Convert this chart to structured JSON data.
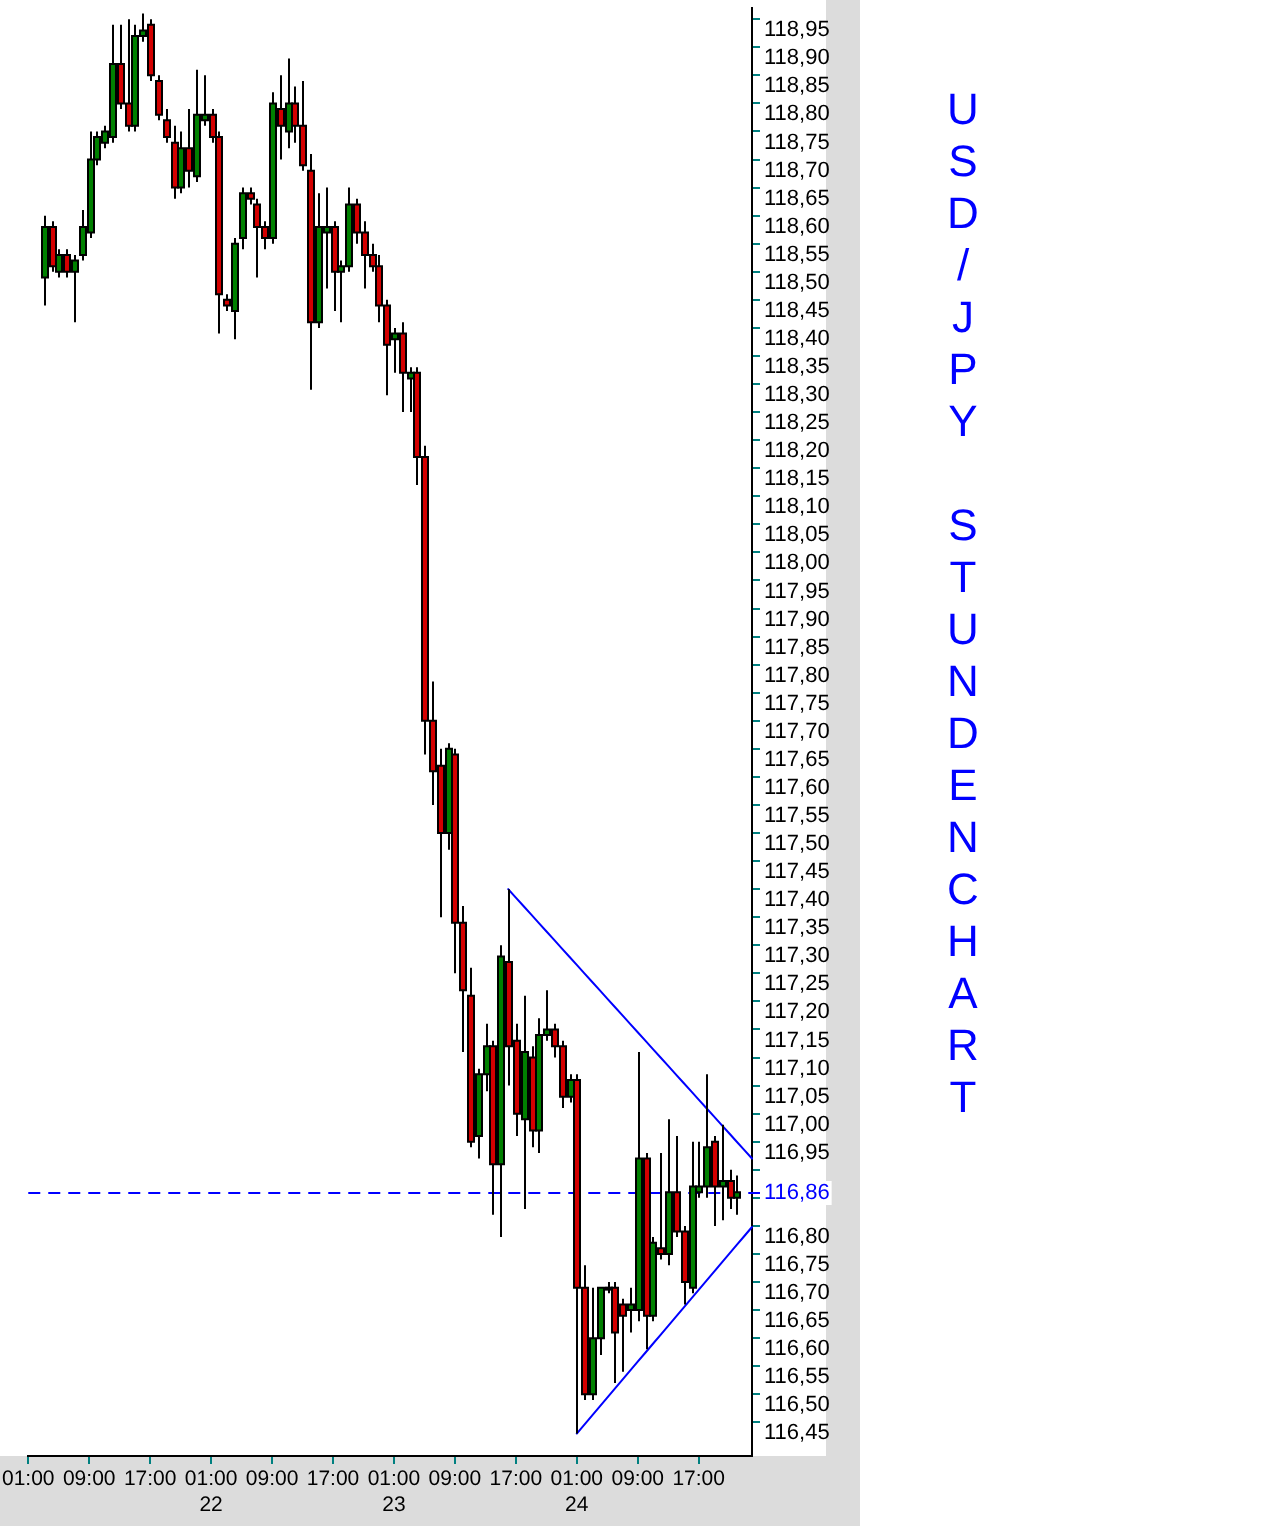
{
  "chart_data": {
    "type": "candlestick",
    "title": "USD/JPY STUNDENCHART",
    "categories": [
      "01:00",
      null,
      null,
      null,
      null,
      null,
      null,
      null,
      "09:00",
      null,
      null,
      null,
      null,
      null,
      null,
      null,
      "17:00",
      null,
      null,
      null,
      null,
      null,
      null,
      null,
      "01:00\n22",
      null,
      null,
      null,
      null,
      null,
      null,
      null,
      "09:00",
      null,
      null,
      null,
      null,
      null,
      null,
      null,
      "17:00",
      null,
      null,
      null,
      null,
      null,
      null,
      null,
      "01:00\n23",
      null,
      null,
      null,
      null,
      null,
      null,
      null,
      "09:00",
      null,
      null,
      null,
      null,
      null,
      null,
      null,
      "17:00",
      null,
      null,
      null,
      null,
      null,
      null,
      null,
      "01:00\n24",
      null,
      null,
      null,
      null,
      null,
      null,
      null,
      "09:00",
      null,
      null,
      null,
      null,
      null,
      null,
      null,
      "17:00",
      null,
      null,
      null,
      null,
      null,
      null,
      null
    ],
    "ylim": [
      116.39,
      118.97
    ],
    "yticks": [
      {
        "value": 116.45,
        "label": "116,45"
      },
      {
        "value": 116.5,
        "label": "116,50"
      },
      {
        "value": 116.55,
        "label": "116,55"
      },
      {
        "value": 116.6,
        "label": "116,60"
      },
      {
        "value": 116.65,
        "label": "116,65"
      },
      {
        "value": 116.7,
        "label": "116,70"
      },
      {
        "value": 116.75,
        "label": "116,75"
      },
      {
        "value": 116.8,
        "label": "116,80"
      },
      {
        "value": 116.85,
        "label": null
      },
      {
        "value": 116.9,
        "label": null
      },
      {
        "value": 116.95,
        "label": "116,95"
      },
      {
        "value": 117,
        "label": "117,00"
      },
      {
        "value": 117.05,
        "label": "117,05"
      },
      {
        "value": 117.1,
        "label": "117,10"
      },
      {
        "value": 117.15,
        "label": "117,15"
      },
      {
        "value": 117.2,
        "label": "117,20"
      },
      {
        "value": 117.25,
        "label": "117,25"
      },
      {
        "value": 117.3,
        "label": "117,30"
      },
      {
        "value": 117.35,
        "label": "117,35"
      },
      {
        "value": 117.4,
        "label": "117,40"
      },
      {
        "value": 117.45,
        "label": "117,45"
      },
      {
        "value": 117.5,
        "label": "117,50"
      },
      {
        "value": 117.55,
        "label": "117,55"
      },
      {
        "value": 117.6,
        "label": "117,60"
      },
      {
        "value": 117.65,
        "label": "117,65"
      },
      {
        "value": 117.7,
        "label": "117,70"
      },
      {
        "value": 117.75,
        "label": "117,75"
      },
      {
        "value": 117.8,
        "label": "117,80"
      },
      {
        "value": 117.85,
        "label": "117,85"
      },
      {
        "value": 117.9,
        "label": "117,90"
      },
      {
        "value": 117.95,
        "label": "117,95"
      },
      {
        "value": 118,
        "label": "118,00"
      },
      {
        "value": 118.05,
        "label": "118,05"
      },
      {
        "value": 118.1,
        "label": "118,10"
      },
      {
        "value": 118.15,
        "label": "118,15"
      },
      {
        "value": 118.2,
        "label": "118,20"
      },
      {
        "value": 118.25,
        "label": "118,25"
      },
      {
        "value": 118.3,
        "label": "118,30"
      },
      {
        "value": 118.35,
        "label": "118,35"
      },
      {
        "value": 118.4,
        "label": "118,40"
      },
      {
        "value": 118.45,
        "label": "118,45"
      },
      {
        "value": 118.5,
        "label": "118,50"
      },
      {
        "value": 118.55,
        "label": "118,55"
      },
      {
        "value": 118.6,
        "label": "118,60"
      },
      {
        "value": 118.65,
        "label": "118,65"
      },
      {
        "value": 118.7,
        "label": "118,70"
      },
      {
        "value": 118.75,
        "label": "118,75"
      },
      {
        "value": 118.8,
        "label": "118,80"
      },
      {
        "value": 118.85,
        "label": "118,85"
      },
      {
        "value": 118.9,
        "label": "118,90"
      },
      {
        "value": 118.95,
        "label": "118,95"
      }
    ],
    "ref_lines": [
      {
        "axis": "y",
        "value": 116.86,
        "label": "116,86",
        "color": "#0000ff",
        "line_style": "dashed"
      }
    ],
    "series": [
      {
        "ohlc": [
          null,
          null,
          [
            118.49,
            118.6,
            118.44,
            118.58
          ],
          [
            118.58,
            118.59,
            118.5,
            118.51
          ],
          [
            118.5,
            118.54,
            118.49,
            118.53
          ],
          [
            118.53,
            118.54,
            118.49,
            118.5
          ],
          [
            118.5,
            118.53,
            118.41,
            118.52
          ],
          [
            118.53,
            118.61,
            118.52,
            118.58
          ],
          [
            118.57,
            118.75,
            118.56,
            118.7
          ],
          [
            118.7,
            118.75,
            118.69,
            118.74
          ],
          [
            118.73,
            118.76,
            118.72,
            118.75
          ],
          [
            118.74,
            118.94,
            118.73,
            118.87
          ],
          [
            118.87,
            118.94,
            118.79,
            118.8
          ],
          [
            118.8,
            118.95,
            118.75,
            118.76
          ],
          [
            118.76,
            118.94,
            118.75,
            118.92
          ],
          [
            118.92,
            118.96,
            118.91,
            118.93
          ],
          [
            118.94,
            118.95,
            118.84,
            118.85
          ],
          [
            118.84,
            118.85,
            118.77,
            118.78
          ],
          [
            118.77,
            118.79,
            118.73,
            118.74
          ],
          [
            118.73,
            118.76,
            118.63,
            118.65
          ],
          [
            118.65,
            118.75,
            118.64,
            118.72
          ],
          [
            118.72,
            118.79,
            118.65,
            118.68
          ],
          [
            118.67,
            118.86,
            118.66,
            118.78
          ],
          [
            118.77,
            118.85,
            118.76,
            118.78
          ],
          [
            118.78,
            118.79,
            118.73,
            118.74
          ],
          [
            118.74,
            118.75,
            118.39,
            118.46
          ],
          [
            118.45,
            118.46,
            118.43,
            118.44
          ],
          [
            118.43,
            118.56,
            118.38,
            118.55
          ],
          [
            118.56,
            118.65,
            118.54,
            118.64
          ],
          [
            118.64,
            118.65,
            118.62,
            118.63
          ],
          [
            118.62,
            118.63,
            118.49,
            118.58
          ],
          [
            118.58,
            118.59,
            118.54,
            118.56
          ],
          [
            118.56,
            118.82,
            118.55,
            118.8
          ],
          [
            118.79,
            118.85,
            118.7,
            118.76
          ],
          [
            118.75,
            118.88,
            118.72,
            118.8
          ],
          [
            118.8,
            118.83,
            118.73,
            118.76
          ],
          [
            118.76,
            118.84,
            118.68,
            118.69
          ],
          [
            118.68,
            118.71,
            118.29,
            118.41
          ],
          [
            118.41,
            118.64,
            118.4,
            118.58
          ],
          [
            118.57,
            118.65,
            118.47,
            118.58
          ],
          [
            118.58,
            118.59,
            118.43,
            118.5
          ],
          [
            118.5,
            118.52,
            118.41,
            118.51
          ],
          [
            118.51,
            118.65,
            118.5,
            118.62
          ],
          [
            118.62,
            118.63,
            118.55,
            118.57
          ],
          [
            118.57,
            118.59,
            118.47,
            118.53
          ],
          [
            118.53,
            118.55,
            118.5,
            118.51
          ],
          [
            118.51,
            118.53,
            118.41,
            118.44
          ],
          [
            118.44,
            118.45,
            118.28,
            118.37
          ],
          [
            118.38,
            118.4,
            118.32,
            118.39
          ],
          [
            118.39,
            118.41,
            118.25,
            118.32
          ],
          [
            118.31,
            118.33,
            118.25,
            118.32
          ],
          [
            118.32,
            118.33,
            118.12,
            118.17
          ],
          [
            118.17,
            118.19,
            117.64,
            117.7
          ],
          [
            117.7,
            117.77,
            117.55,
            117.61
          ],
          [
            117.62,
            117.65,
            117.35,
            117.5
          ],
          [
            117.5,
            117.66,
            117.47,
            117.65
          ],
          [
            117.64,
            117.65,
            117.25,
            117.34
          ],
          [
            117.34,
            117.37,
            117.11,
            117.22
          ],
          [
            117.21,
            117.26,
            116.94,
            116.95
          ],
          [
            116.96,
            117.08,
            116.92,
            117.07
          ],
          [
            117.07,
            117.16,
            117.04,
            117.12
          ],
          [
            117.12,
            117.13,
            116.82,
            116.91
          ],
          [
            116.91,
            117.3,
            116.78,
            117.28
          ],
          [
            117.27,
            117.4,
            117.05,
            117.12
          ],
          [
            117.13,
            117.16,
            116.96,
            117.0
          ],
          [
            116.99,
            117.21,
            116.83,
            117.11
          ],
          [
            117.1,
            117.12,
            116.94,
            116.97
          ],
          [
            116.97,
            117.17,
            116.93,
            117.14
          ],
          [
            117.14,
            117.22,
            117.13,
            117.15
          ],
          [
            117.15,
            117.16,
            117.1,
            117.12
          ],
          [
            117.12,
            117.13,
            117.01,
            117.03
          ],
          [
            117.03,
            117.07,
            117.02,
            117.06
          ],
          [
            117.06,
            117.07,
            116.43,
            116.69
          ],
          [
            116.69,
            116.73,
            116.49,
            116.5
          ],
          [
            116.5,
            116.69,
            116.49,
            116.6
          ],
          [
            116.6,
            116.69,
            116.57,
            116.69
          ],
          [
            116.69,
            116.7,
            116.68,
            116.69
          ],
          [
            116.69,
            116.7,
            116.52,
            116.61
          ],
          [
            116.66,
            116.67,
            116.54,
            116.64
          ],
          [
            116.65,
            116.69,
            116.61,
            116.66
          ],
          [
            116.65,
            117.11,
            116.63,
            116.92
          ],
          [
            116.92,
            116.93,
            116.58,
            116.64
          ],
          [
            116.64,
            116.78,
            116.63,
            116.77
          ],
          [
            116.76,
            116.93,
            116.74,
            116.75
          ],
          [
            116.75,
            116.99,
            116.73,
            116.86
          ],
          [
            116.86,
            116.96,
            116.78,
            116.79
          ],
          [
            116.79,
            116.8,
            116.66,
            116.7
          ],
          [
            116.69,
            116.95,
            116.68,
            116.87
          ],
          [
            116.86,
            116.95,
            116.85,
            116.87
          ],
          [
            116.87,
            117.07,
            116.85,
            116.94
          ],
          [
            116.95,
            116.96,
            116.8,
            116.87
          ],
          [
            116.87,
            116.98,
            116.81,
            116.88
          ],
          [
            116.88,
            116.9,
            116.83,
            116.85
          ],
          [
            116.85,
            116.89,
            116.82,
            116.86
          ],
          null,
          null
        ],
        "colors": [
          null,
          null,
          "#008000",
          "#d40000",
          "#008000",
          "#d40000",
          "#008000",
          "#008000",
          "#008000",
          "#008000",
          "#008000",
          "#008000",
          "#d40000",
          "#d40000",
          "#008000",
          "#008000",
          "#d40000",
          "#d40000",
          "#d40000",
          "#d40000",
          "#008000",
          "#d40000",
          "#008000",
          "#008000",
          "#d40000",
          "#d40000",
          "#d40000",
          "#008000",
          "#008000",
          "#d40000",
          "#d40000",
          "#d40000",
          "#008000",
          "#d40000",
          "#008000",
          "#d40000",
          "#d40000",
          "#d40000",
          "#008000",
          "#008000",
          "#d40000",
          "#008000",
          "#008000",
          "#d40000",
          "#d40000",
          "#d40000",
          "#d40000",
          "#d40000",
          "#008000",
          "#d40000",
          "#008000",
          "#d40000",
          "#d40000",
          "#d40000",
          "#d40000",
          "#008000",
          "#d40000",
          "#d40000",
          "#d40000",
          "#008000",
          "#008000",
          "#d40000",
          "#008000",
          "#d40000",
          "#d40000",
          "#008000",
          "#d40000",
          "#008000",
          "#008000",
          "#d40000",
          "#d40000",
          "#008000",
          "#d40000",
          "#d40000",
          "#008000",
          "#008000",
          "#008000",
          "#d40000",
          "#d40000",
          "#008000",
          "#008000",
          "#d40000",
          "#008000",
          "#d40000",
          "#008000",
          "#d40000",
          "#d40000",
          "#008000",
          "#008000",
          "#008000",
          "#d40000",
          "#008000",
          "#d40000",
          "#008000",
          null,
          null
        ]
      },
      {
        "type": "line",
        "color": "#0000ff",
        "values": [
          null,
          null,
          null,
          null,
          null,
          null,
          null,
          null,
          null,
          null,
          null,
          null,
          null,
          null,
          null,
          null,
          null,
          null,
          null,
          null,
          null,
          null,
          null,
          null,
          null,
          null,
          null,
          null,
          null,
          null,
          null,
          null,
          null,
          null,
          null,
          null,
          null,
          null,
          null,
          null,
          null,
          null,
          null,
          null,
          null,
          null,
          null,
          null,
          null,
          null,
          null,
          null,
          null,
          null,
          null,
          null,
          null,
          null,
          null,
          null,
          null,
          null,
          null,
          117.4,
          117.385,
          117.37,
          117.355,
          117.34,
          117.325,
          117.31,
          117.295,
          117.28,
          117.265,
          117.25,
          117.235,
          117.22,
          117.205,
          117.19,
          117.175,
          117.16,
          117.145,
          117.13,
          117.115,
          117.1,
          117.085,
          117.07,
          117.055,
          117.04,
          117.025,
          117.01,
          116.995,
          116.98,
          116.965,
          116.95,
          116.935,
          116.92
        ]
      },
      {
        "type": "line",
        "color": "#0000ff",
        "values": [
          null,
          null,
          null,
          null,
          null,
          null,
          null,
          null,
          null,
          null,
          null,
          null,
          null,
          null,
          null,
          null,
          null,
          null,
          null,
          null,
          null,
          null,
          null,
          null,
          null,
          null,
          null,
          null,
          null,
          null,
          null,
          null,
          null,
          null,
          null,
          null,
          null,
          null,
          null,
          null,
          null,
          null,
          null,
          null,
          null,
          null,
          null,
          null,
          null,
          null,
          null,
          null,
          null,
          null,
          null,
          null,
          null,
          null,
          null,
          null,
          null,
          null,
          null,
          null,
          null,
          null,
          null,
          null,
          null,
          null,
          null,
          null,
          116.43,
          116.446,
          116.462,
          116.478,
          116.494,
          116.51,
          116.526,
          116.542,
          116.558,
          116.574,
          116.59,
          116.606,
          116.622,
          116.638,
          116.654,
          116.67,
          116.686,
          116.702,
          116.718,
          116.734,
          116.75,
          116.766,
          116.782,
          116.798
        ]
      }
    ]
  }
}
